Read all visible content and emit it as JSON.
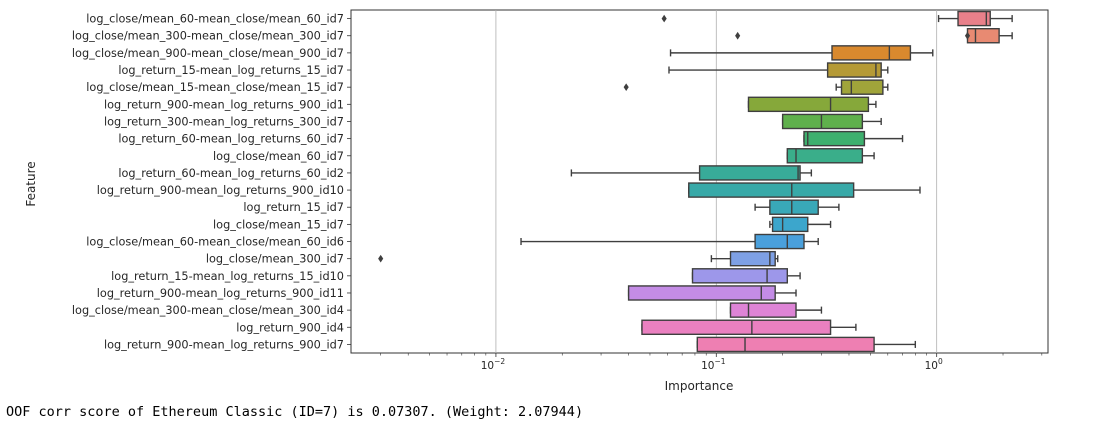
{
  "chart_data": {
    "type": "boxplot",
    "orientation": "horizontal",
    "xlabel": "Importance",
    "ylabel": "Feature",
    "xscale": "log",
    "xlim": [
      0.0022,
      3.2
    ],
    "xticks": [
      {
        "value": 0.01,
        "base": "10",
        "exp": "−2"
      },
      {
        "value": 0.1,
        "base": "10",
        "exp": "−1"
      },
      {
        "value": 1,
        "base": "10",
        "exp": "0"
      }
    ],
    "grid": "vertical lines at major x ticks",
    "series": [
      {
        "label": "log_close/mean_60-mean_close/mean_60_id7",
        "color": "#e8808a",
        "min": 1.02,
        "q1": 1.25,
        "median": 1.68,
        "q3": 1.75,
        "max": 2.2,
        "outliers": [
          0.058
        ]
      },
      {
        "label": "log_close/mean_300-mean_close/mean_300_id7",
        "color": "#e88a72",
        "min": 1.38,
        "q1": 1.38,
        "median": 1.5,
        "q3": 1.92,
        "max": 2.2,
        "outliers": [
          0.125,
          1.38
        ]
      },
      {
        "label": "log_close/mean_900-mean_close/mean_900_id7",
        "color": "#d9892e",
        "min": 0.062,
        "q1": 0.335,
        "median": 0.61,
        "q3": 0.76,
        "max": 0.96,
        "outliers": []
      },
      {
        "label": "log_return_15-mean_log_returns_15_id7",
        "color": "#b59a36",
        "min": 0.061,
        "q1": 0.32,
        "median": 0.53,
        "q3": 0.56,
        "max": 0.6,
        "outliers": []
      },
      {
        "label": "log_close/mean_15-mean_close/mean_15_id7",
        "color": "#a0a43a",
        "min": 0.35,
        "q1": 0.37,
        "median": 0.41,
        "q3": 0.57,
        "max": 0.6,
        "outliers": [
          0.039
        ]
      },
      {
        "label": "log_return_900-mean_log_returns_900_id1",
        "color": "#86a83a",
        "min": 0.14,
        "q1": 0.14,
        "median": 0.33,
        "q3": 0.49,
        "max": 0.53,
        "outliers": []
      },
      {
        "label": "log_return_300-mean_log_returns_300_id7",
        "color": "#5fb04c",
        "min": 0.2,
        "q1": 0.2,
        "median": 0.3,
        "q3": 0.46,
        "max": 0.56,
        "outliers": []
      },
      {
        "label": "log_return_60-mean_log_returns_60_id7",
        "color": "#3eb06e",
        "min": 0.25,
        "q1": 0.25,
        "median": 0.26,
        "q3": 0.47,
        "max": 0.7,
        "outliers": []
      },
      {
        "label": "log_close/mean_60_id7",
        "color": "#3aae8a",
        "min": 0.21,
        "q1": 0.21,
        "median": 0.23,
        "q3": 0.46,
        "max": 0.52,
        "outliers": []
      },
      {
        "label": "log_return_60-mean_log_returns_60_id2",
        "color": "#38ab99",
        "min": 0.022,
        "q1": 0.084,
        "median": 0.235,
        "q3": 0.24,
        "max": 0.27,
        "outliers": []
      },
      {
        "label": "log_return_900-mean_log_returns_900_id10",
        "color": "#38a9a8",
        "min": 0.075,
        "q1": 0.075,
        "median": 0.22,
        "q3": 0.42,
        "max": 0.84,
        "outliers": []
      },
      {
        "label": "log_return_15_id7",
        "color": "#39a8b8",
        "min": 0.15,
        "q1": 0.175,
        "median": 0.22,
        "q3": 0.29,
        "max": 0.36,
        "outliers": []
      },
      {
        "label": "log_close/mean_15_id7",
        "color": "#3ca6cc",
        "min": 0.175,
        "q1": 0.18,
        "median": 0.2,
        "q3": 0.26,
        "max": 0.33,
        "outliers": []
      },
      {
        "label": "log_close/mean_60-mean_close/mean_60_id6",
        "color": "#4aa0dc",
        "min": 0.013,
        "q1": 0.15,
        "median": 0.21,
        "q3": 0.25,
        "max": 0.29,
        "outliers": []
      },
      {
        "label": "log_close/mean_300_id7",
        "color": "#7ea0e4",
        "min": 0.095,
        "q1": 0.116,
        "median": 0.175,
        "q3": 0.185,
        "max": 0.19,
        "outliers": [
          0.003
        ]
      },
      {
        "label": "log_return_15-mean_log_returns_15_id10",
        "color": "#9d97ea",
        "min": 0.078,
        "q1": 0.078,
        "median": 0.17,
        "q3": 0.21,
        "max": 0.24,
        "outliers": []
      },
      {
        "label": "log_return_900-mean_log_returns_900_id11",
        "color": "#c48ce6",
        "min": 0.04,
        "q1": 0.04,
        "median": 0.16,
        "q3": 0.185,
        "max": 0.23,
        "outliers": []
      },
      {
        "label": "log_close/mean_300-mean_close/mean_300_id4",
        "color": "#de84d6",
        "min": 0.116,
        "q1": 0.116,
        "median": 0.14,
        "q3": 0.23,
        "max": 0.3,
        "outliers": []
      },
      {
        "label": "log_return_900_id4",
        "color": "#ea80c0",
        "min": 0.046,
        "q1": 0.046,
        "median": 0.145,
        "q3": 0.33,
        "max": 0.43,
        "outliers": []
      },
      {
        "label": "log_return_900-mean_log_returns_900_id7",
        "color": "#ee7fb2",
        "min": 0.082,
        "q1": 0.082,
        "median": 0.135,
        "q3": 0.52,
        "max": 0.8,
        "outliers": []
      }
    ]
  },
  "caption": "OOF corr score of Ethereum Classic (ID=7) is 0.07307. (Weight: 2.07944)"
}
